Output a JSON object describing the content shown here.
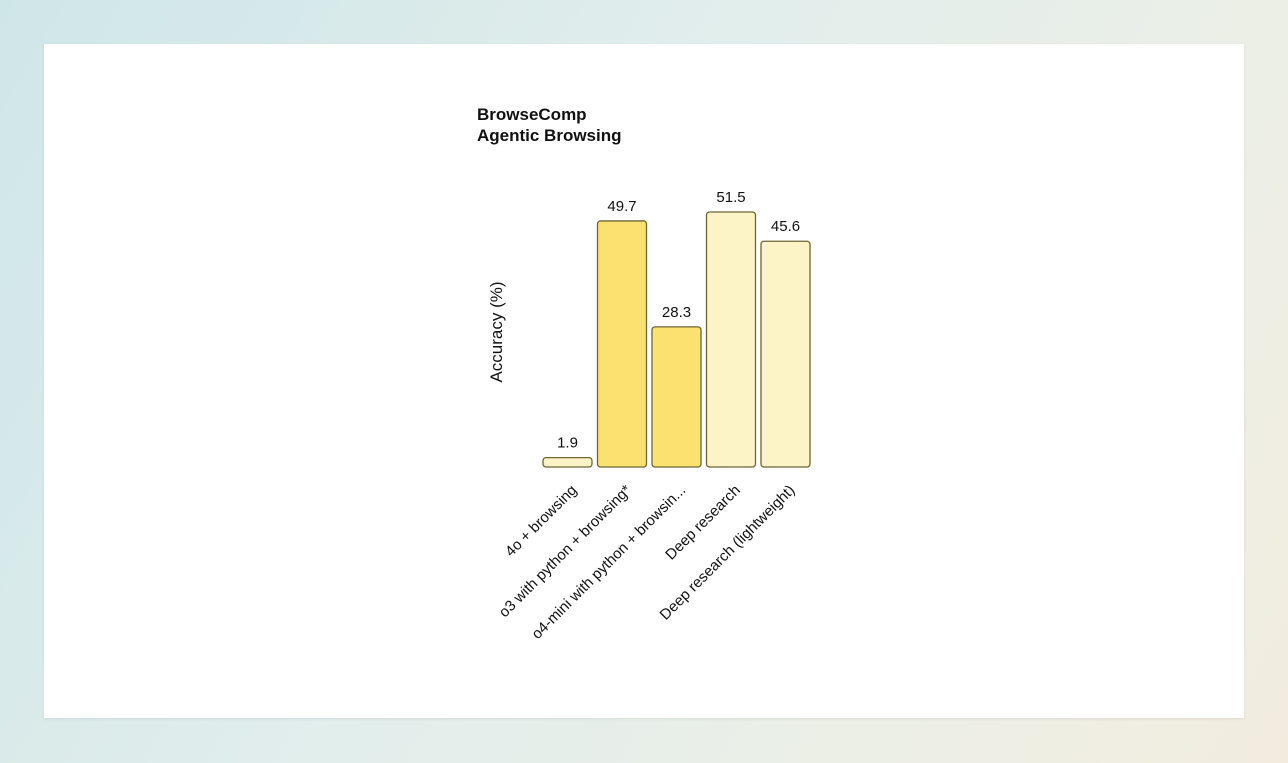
{
  "chart_data": {
    "type": "bar",
    "title": [
      "BrowseComp",
      "Agentic Browsing"
    ],
    "ylabel": "Accuracy (%)",
    "xlabel": "",
    "ylim": [
      0,
      51.5
    ],
    "grid": false,
    "categories": [
      "4o + browsing",
      "o3 with python + browsing*",
      "o4-mini with python + browsin...",
      "Deep research",
      "Deep research (lightweight)"
    ],
    "values": [
      1.9,
      49.7,
      28.3,
      51.5,
      45.6
    ],
    "value_labels": [
      "1.9",
      "49.7",
      "28.3",
      "51.5",
      "45.6"
    ],
    "colors": [
      "#fcf4c6",
      "#fbe16f",
      "#fbe16f",
      "#fcf4c6",
      "#fcf4c6"
    ],
    "bar_stroke": "#6e6535"
  }
}
